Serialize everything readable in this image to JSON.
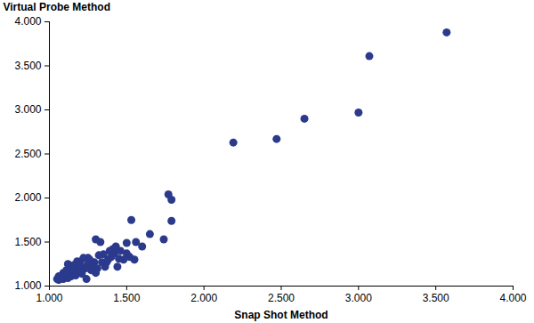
{
  "chart_data": {
    "type": "scatter",
    "x_label": "Snap Shot Method",
    "y_label": "Virtual Probe Method",
    "color": "#2b3a8c",
    "marker": "circle",
    "grid": false,
    "xlim": [
      1,
      4
    ],
    "ylim": [
      1,
      4
    ],
    "xticks": [
      {
        "value": 1,
        "label": "1.000"
      },
      {
        "value": 1.5,
        "label": "1.500"
      },
      {
        "value": 2,
        "label": "2.000"
      },
      {
        "value": 2.5,
        "label": "2.500"
      },
      {
        "value": 3,
        "label": "3.000"
      },
      {
        "value": 3.5,
        "label": "3.500"
      },
      {
        "value": 4,
        "label": "4.000"
      }
    ],
    "yticks": [
      {
        "value": 1,
        "label": "1.000"
      },
      {
        "value": 1.5,
        "label": "1.500"
      },
      {
        "value": 2,
        "label": "2.000"
      },
      {
        "value": 2.5,
        "label": "2.500"
      },
      {
        "value": 3,
        "label": "3.000"
      },
      {
        "value": 3.5,
        "label": "3.500"
      },
      {
        "value": 4,
        "label": "4.000"
      }
    ],
    "x": [
      3.57,
      3.07,
      3.0,
      2.65,
      2.47,
      2.19,
      1.77,
      1.79,
      1.79,
      1.74,
      1.65,
      1.6,
      1.53,
      1.56,
      1.55,
      1.52,
      1.5,
      1.5,
      1.48,
      1.46,
      1.45,
      1.44,
      1.43,
      1.42,
      1.41,
      1.4,
      1.39,
      1.38,
      1.37,
      1.36,
      1.35,
      1.34,
      1.33,
      1.32,
      1.31,
      1.3,
      1.3,
      1.29,
      1.28,
      1.27,
      1.27,
      1.26,
      1.25,
      1.25,
      1.24,
      1.23,
      1.22,
      1.22,
      1.21,
      1.2,
      1.2,
      1.19,
      1.18,
      1.18,
      1.17,
      1.16,
      1.16,
      1.15,
      1.15,
      1.14,
      1.14,
      1.13,
      1.12,
      1.12,
      1.12,
      1.11,
      1.1,
      1.1,
      1.09,
      1.09,
      1.08,
      1.08,
      1.07,
      1.06,
      1.06,
      1.05
    ],
    "y": [
      3.88,
      3.61,
      2.97,
      2.9,
      2.67,
      2.63,
      2.04,
      1.98,
      1.74,
      1.53,
      1.59,
      1.45,
      1.75,
      1.5,
      1.3,
      1.33,
      1.49,
      1.37,
      1.3,
      1.4,
      1.31,
      1.22,
      1.45,
      1.37,
      1.42,
      1.33,
      1.4,
      1.3,
      1.27,
      1.22,
      1.36,
      1.27,
      1.5,
      1.35,
      1.2,
      1.53,
      1.15,
      1.27,
      1.23,
      1.18,
      1.26,
      1.3,
      1.25,
      1.32,
      1.08,
      1.2,
      1.32,
      1.21,
      1.14,
      1.19,
      1.27,
      1.16,
      1.22,
      1.28,
      1.12,
      1.17,
      1.24,
      1.2,
      1.13,
      1.11,
      1.19,
      1.15,
      1.12,
      1.09,
      1.25,
      1.18,
      1.1,
      1.14,
      1.08,
      1.15,
      1.09,
      1.12,
      1.1,
      1.07,
      1.11,
      1.08
    ]
  }
}
